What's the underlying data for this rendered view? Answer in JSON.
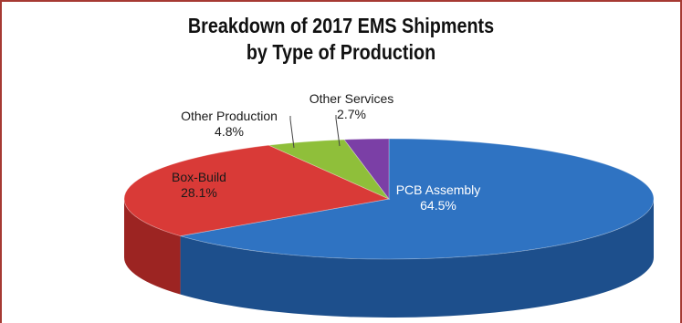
{
  "chart_data": {
    "type": "pie",
    "title_lines": [
      "Breakdown of 2017 EMS Shipments",
      "by Type of Production"
    ],
    "slices": [
      {
        "label": "PCB Assembly",
        "value": 64.5,
        "value_label": "64.5%",
        "color": "#2f73c2",
        "side_color": "#1d4f8c",
        "label_color": "#ffffff"
      },
      {
        "label": "Box-Build",
        "value": 28.1,
        "value_label": "28.1%",
        "color": "#d93a37",
        "side_color": "#9c2422",
        "label_color": "#1a1a1a"
      },
      {
        "label": "Other Production",
        "value": 4.8,
        "value_label": "4.8%",
        "color": "#8fbf3a",
        "side_color": "#5f8a22",
        "label_color": "#1a1a1a"
      },
      {
        "label": "Other Services",
        "value": 2.7,
        "value_label": "2.7%",
        "color": "#7b3fa6",
        "side_color": "#552a74",
        "label_color": "#1a1a1a"
      }
    ],
    "legend": "none",
    "style": "3d"
  }
}
